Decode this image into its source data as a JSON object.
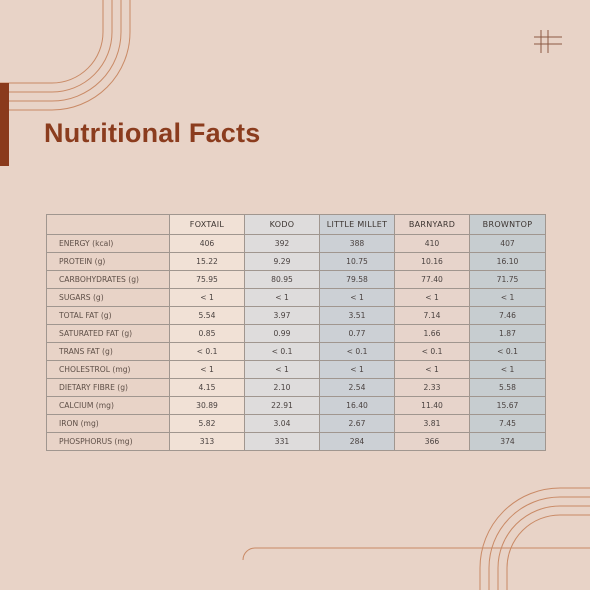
{
  "page": {
    "title": "Nutritional Facts",
    "colors": {
      "background": "#e8d3c7",
      "accent": "#8b3c1e",
      "line": "#c98a66",
      "foxtail_text": "#b27a44"
    }
  },
  "table": {
    "columns": [
      "FOXTAIL",
      "KODO",
      "LITTLE MILLET",
      "BARNYARD",
      "BROWNTOP"
    ],
    "rows": [
      {
        "label": "ENERGY (kcal)",
        "values": [
          "406",
          "392",
          "388",
          "410",
          "407"
        ]
      },
      {
        "label": "PROTEIN (g)",
        "values": [
          "15.22",
          "9.29",
          "10.75",
          "10.16",
          "16.10"
        ]
      },
      {
        "label": "CARBOHYDRATES (g)",
        "values": [
          "75.95",
          "80.95",
          "79.58",
          "77.40",
          "71.75"
        ]
      },
      {
        "label": "SUGARS (g)",
        "values": [
          "< 1",
          "< 1",
          "< 1",
          "< 1",
          "< 1"
        ]
      },
      {
        "label": "TOTAL FAT (g)",
        "values": [
          "5.54",
          "3.97",
          "3.51",
          "7.14",
          "7.46"
        ]
      },
      {
        "label": "SATURATED FAT (g)",
        "values": [
          "0.85",
          "0.99",
          "0.77",
          "1.66",
          "1.87"
        ]
      },
      {
        "label": "TRANS FAT (g)",
        "values": [
          "< 0.1",
          "< 0.1",
          "< 0.1",
          "< 0.1",
          "< 0.1"
        ]
      },
      {
        "label": "CHOLESTROL (mg)",
        "values": [
          "< 1",
          "< 1",
          "< 1",
          "< 1",
          "< 1"
        ]
      },
      {
        "label": "DIETARY FIBRE (g)",
        "values": [
          "4.15",
          "2.10",
          "2.54",
          "2.33",
          "5.58"
        ]
      },
      {
        "label": "CALCIUM (mg)",
        "values": [
          "30.89",
          "22.91",
          "16.40",
          "11.40",
          "15.67"
        ]
      },
      {
        "label": "IRON (mg)",
        "values": [
          "5.82",
          "3.04",
          "2.67",
          "3.81",
          "7.45"
        ]
      },
      {
        "label": "PHOSPHORUS (mg)",
        "values": [
          "313",
          "331",
          "284",
          "366",
          "374"
        ]
      }
    ]
  },
  "decorations": {
    "corner_mark_icon": "hash-icon"
  }
}
